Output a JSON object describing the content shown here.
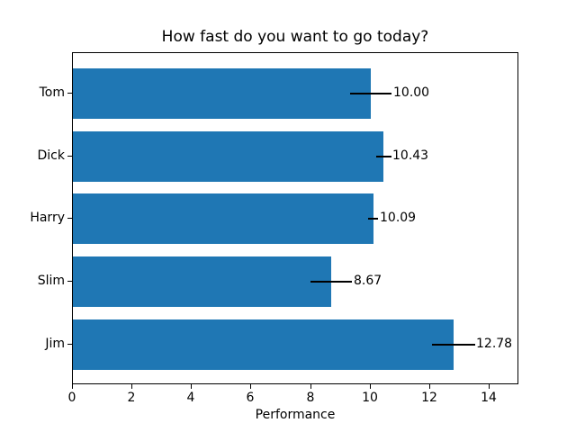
{
  "chart_data": {
    "type": "bar",
    "orientation": "horizontal",
    "title": "How fast do you want to go today?",
    "xlabel": "Performance",
    "ylabel": "",
    "categories": [
      "Tom",
      "Dick",
      "Harry",
      "Slim",
      "Jim"
    ],
    "values": [
      10.0,
      10.43,
      10.09,
      8.67,
      12.78
    ],
    "errors": [
      0.7,
      0.25,
      0.16,
      0.7,
      0.72
    ],
    "bar_labels": [
      "10.00",
      "10.43",
      "10.09",
      "8.67",
      "12.78"
    ],
    "xlim": [
      0,
      15
    ],
    "xticks": [
      0,
      2,
      4,
      6,
      8,
      10,
      12,
      14
    ],
    "xtick_labels": [
      "0",
      "2",
      "4",
      "6",
      "8",
      "10",
      "12",
      "14"
    ],
    "bar_color": "#1f77b4",
    "error_color": "#000000",
    "grid": false,
    "legend": null
  }
}
